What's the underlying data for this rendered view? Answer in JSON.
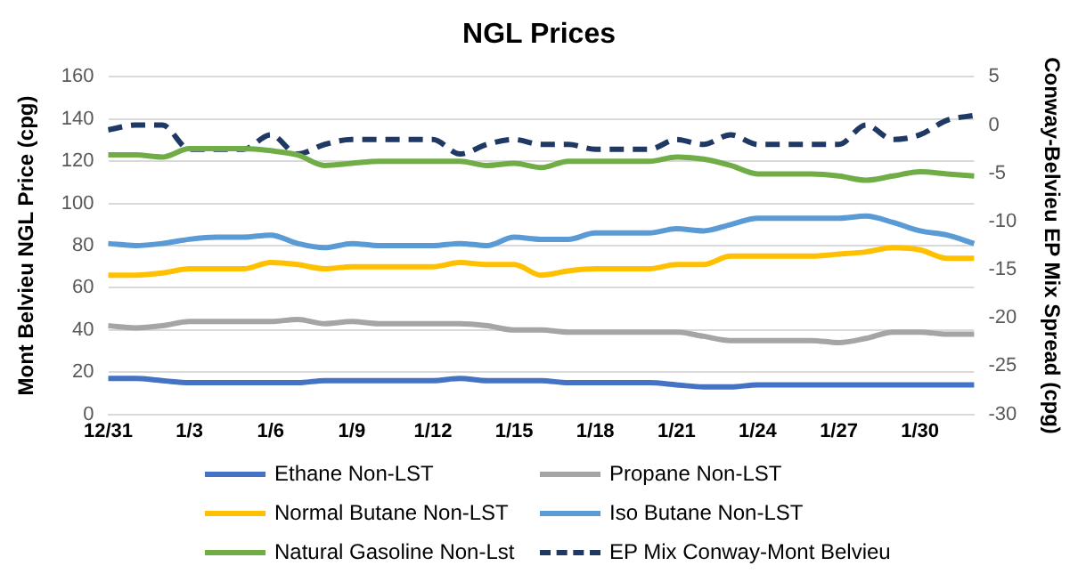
{
  "chart_data": {
    "type": "line",
    "title": "NGL Prices",
    "ylabel": "Mont Belvieu NGL Price (cpg)",
    "y2label": "Conway-Belvieu EP Mix Spread (cpg)",
    "categories": [
      "12/31",
      null,
      null,
      "1/3",
      null,
      null,
      "1/6",
      null,
      null,
      "1/9",
      null,
      null,
      "1/12",
      null,
      null,
      "1/15",
      null,
      null,
      "1/18",
      null,
      null,
      "1/21",
      null,
      null,
      "1/24",
      null,
      null,
      "1/27",
      null,
      null,
      "1/30",
      null,
      null
    ],
    "series": [
      {
        "name": "Ethane Non-LST",
        "color": "#4472c4",
        "values": [
          17,
          17,
          16,
          15,
          15,
          15,
          15,
          15,
          16,
          16,
          16,
          16,
          16,
          17,
          16,
          16,
          16,
          15,
          15,
          15,
          15,
          14,
          13,
          13,
          14,
          14,
          14,
          14,
          14,
          14,
          14,
          14,
          14
        ]
      },
      {
        "name": "Propane Non-LST",
        "color": "#a5a5a5",
        "values": [
          42,
          41,
          42,
          44,
          44,
          44,
          44,
          45,
          43,
          44,
          43,
          43,
          43,
          43,
          42,
          40,
          40,
          39,
          39,
          39,
          39,
          39,
          37,
          35,
          35,
          35,
          35,
          34,
          36,
          39,
          39,
          38,
          38
        ]
      },
      {
        "name": "Normal Butane Non-LST",
        "color": "#ffc000",
        "values": [
          66,
          66,
          67,
          69,
          69,
          69,
          72,
          71,
          69,
          70,
          70,
          70,
          70,
          72,
          71,
          71,
          66,
          68,
          69,
          69,
          69,
          71,
          71,
          75,
          75,
          75,
          75,
          76,
          77,
          79,
          78,
          74,
          74
        ]
      },
      {
        "name": "Iso Butane Non-LST",
        "color": "#5b9bd5",
        "values": [
          81,
          80,
          81,
          83,
          84,
          84,
          85,
          81,
          79,
          81,
          80,
          80,
          80,
          81,
          80,
          84,
          83,
          83,
          86,
          86,
          86,
          88,
          87,
          90,
          93,
          93,
          93,
          93,
          94,
          91,
          87,
          85,
          81
        ]
      },
      {
        "name": "Natural Gasoline Non-Lst",
        "color": "#70ad47",
        "values": [
          123,
          123,
          122,
          126,
          126,
          126,
          125,
          123,
          118,
          119,
          120,
          120,
          120,
          120,
          118,
          119,
          117,
          120,
          120,
          120,
          120,
          122,
          121,
          118,
          114,
          114,
          114,
          113,
          111,
          113,
          115,
          114,
          113
        ]
      },
      {
        "name": "EP Mix Conway-Mont Belvieu",
        "color": "#203864",
        "axis": "y2",
        "line_style": "dashed",
        "values": [
          -0.5,
          0,
          0,
          -2.5,
          -2.5,
          -2.5,
          -1,
          -3,
          -2,
          -1.5,
          -1.5,
          -1.5,
          -1.5,
          -3,
          -2,
          -1.5,
          -2,
          -2,
          -2.5,
          -2.5,
          -2.5,
          -1.5,
          -2,
          -1,
          -2,
          -2,
          -2,
          -2,
          0,
          -1.5,
          -1,
          0.5,
          1
        ]
      }
    ],
    "ylim": [
      0,
      160
    ],
    "yticks": [
      0,
      20,
      40,
      60,
      80,
      100,
      120,
      140,
      160
    ],
    "y2lim": [
      -30,
      5
    ],
    "y2ticks": [
      -30,
      -25,
      -20,
      -15,
      -10,
      -5,
      0,
      5
    ],
    "grid": "y",
    "legend": "bottom",
    "marker": "none"
  }
}
